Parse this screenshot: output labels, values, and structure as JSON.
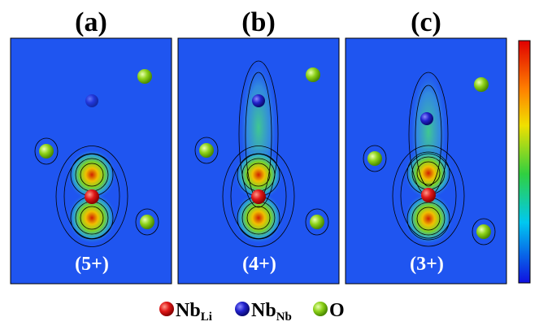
{
  "panels": [
    {
      "label": "(a)",
      "charge": "(5+)"
    },
    {
      "label": "(b)",
      "charge": "(4+)"
    },
    {
      "label": "(c)",
      "charge": "(3+)"
    }
  ],
  "legend": [
    {
      "name": "Nb",
      "sub": "Li"
    },
    {
      "name": "Nb",
      "sub": "Nb"
    },
    {
      "name": "O"
    }
  ]
}
